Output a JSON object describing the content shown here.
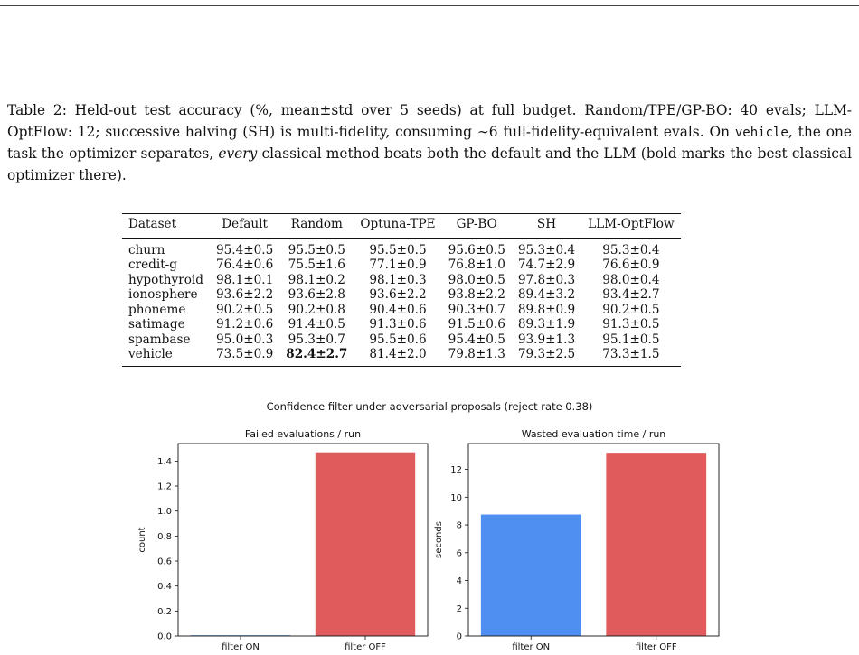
{
  "caption": {
    "part1": "Table 2: Held-out test accuracy (%, mean±std over 5 seeds) at full budget. Random/TPE/GP-BO: 40 evals; LLM-OptFlow: 12; successive halving (SH) is multi-fidelity, consuming ∼6 full-fidelity-equivalent evals. On ",
    "code": "vehicle",
    "part2": ", the one task the optimizer separates, ",
    "emph": "every",
    "part3": " classical method beats both the default and the LLM (bold marks the best classical optimizer there)."
  },
  "table": {
    "headers": [
      "Dataset",
      "Default",
      "Random",
      "Optuna-TPE",
      "GP-BO",
      "SH",
      "LLM-OptFlow"
    ],
    "rows": [
      [
        "churn",
        "95.4±0.5",
        "95.5±0.5",
        "95.5±0.5",
        "95.6±0.5",
        "95.3±0.4",
        "95.3±0.4"
      ],
      [
        "credit-g",
        "76.4±0.6",
        "75.5±1.6",
        "77.1±0.9",
        "76.8±1.0",
        "74.7±2.9",
        "76.6±0.9"
      ],
      [
        "hypothyroid",
        "98.1±0.1",
        "98.1±0.2",
        "98.1±0.3",
        "98.0±0.5",
        "97.8±0.3",
        "98.0±0.4"
      ],
      [
        "ionosphere",
        "93.6±2.2",
        "93.6±2.8",
        "93.6±2.2",
        "93.8±2.2",
        "89.4±3.2",
        "93.4±2.7"
      ],
      [
        "phoneme",
        "90.2±0.5",
        "90.2±0.8",
        "90.4±0.6",
        "90.3±0.7",
        "89.8±0.9",
        "90.2±0.5"
      ],
      [
        "satimage",
        "91.2±0.6",
        "91.4±0.5",
        "91.3±0.6",
        "91.5±0.6",
        "89.3±1.9",
        "91.3±0.5"
      ],
      [
        "spambase",
        "95.0±0.3",
        "95.3±0.7",
        "95.5±0.6",
        "95.4±0.5",
        "93.9±1.3",
        "95.1±0.5"
      ],
      [
        "vehicle",
        "73.5±0.9",
        "82.4±2.7",
        "81.4±2.0",
        "79.8±1.3",
        "79.3±2.5",
        "73.3±1.5"
      ]
    ]
  },
  "figure": {
    "suptitle": "Confidence filter under adversarial proposals (reject rate 0.38)"
  },
  "chart_data": [
    {
      "type": "bar",
      "title": "Failed evaluations / run",
      "categories": [
        "filter ON",
        "filter OFF"
      ],
      "values": [
        0.0,
        1.47
      ],
      "colors": [
        "#4f8ff2",
        "#e05c5c"
      ],
      "xlabel": "",
      "ylabel": "count",
      "ylim": [
        0,
        1.54
      ],
      "yticks": [
        0.0,
        0.2,
        0.4,
        0.6,
        0.8,
        1.0,
        1.2,
        1.4
      ],
      "ytick_labels": [
        "0.0",
        "0.2",
        "0.4",
        "0.6",
        "0.8",
        "1.0",
        "1.2",
        "1.4"
      ],
      "grid": false
    },
    {
      "type": "bar",
      "title": "Wasted evaluation time / run",
      "categories": [
        "filter ON",
        "filter OFF"
      ],
      "values": [
        8.75,
        13.2
      ],
      "colors": [
        "#4f8ff2",
        "#e05c5c"
      ],
      "xlabel": "",
      "ylabel": "seconds",
      "ylim": [
        0,
        13.86
      ],
      "yticks": [
        0,
        2,
        4,
        6,
        8,
        10,
        12
      ],
      "ytick_labels": [
        "0",
        "2",
        "4",
        "6",
        "8",
        "10",
        "12"
      ],
      "grid": false
    }
  ]
}
